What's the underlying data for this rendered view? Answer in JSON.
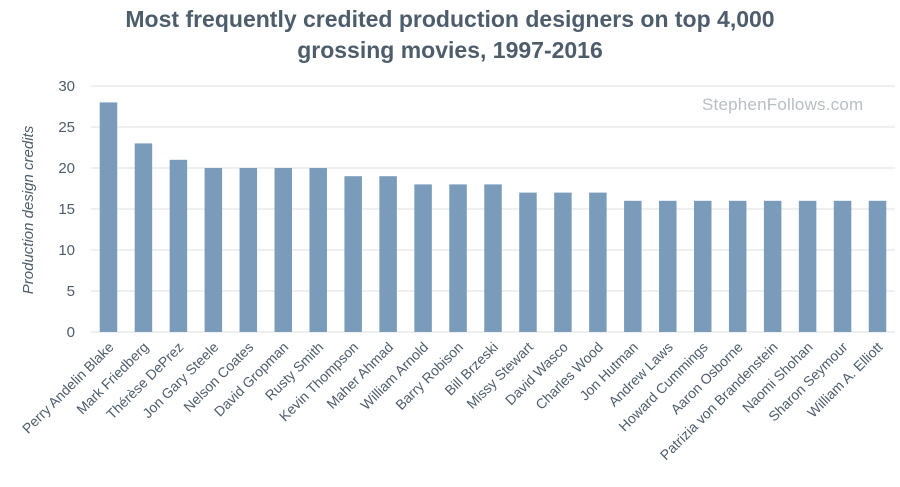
{
  "watermark": "StephenFollows.com",
  "chart_data": {
    "type": "bar",
    "title": "Most frequently credited production designers on top 4,000 grossing movies, 1997-2016",
    "title_lines": [
      "Most frequently credited production designers on top 4,000",
      "grossing movies, 1997-2016"
    ],
    "xlabel": "",
    "ylabel": "Production design credits",
    "ylim": [
      0,
      30
    ],
    "yticks": [
      0,
      5,
      10,
      15,
      20,
      25,
      30
    ],
    "grid": true,
    "legend": "none",
    "bar_color": "#7a9cba",
    "grid_color": "#dcdfe2",
    "categories": [
      "Perry Andelin Blake",
      "Mark Friedberg",
      "Thérèse DePrez",
      "Jon Gary Steele",
      "Nelson Coates",
      "David Gropman",
      "Rusty Smith",
      "Kevin Thompson",
      "Maher Ahmad",
      "William Arnold",
      "Barry Robison",
      "Bill Brzeski",
      "Missy Stewart",
      "David Wasco",
      "Charles Wood",
      "Jon Hutman",
      "Andrew Laws",
      "Howard Cummings",
      "Aaron Osborne",
      "Patrizia von Brandenstein",
      "Naomi Shohan",
      "Sharon Seymour",
      "William A. Elliott"
    ],
    "values": [
      28,
      23,
      21,
      20,
      20,
      20,
      20,
      19,
      19,
      18,
      18,
      18,
      17,
      17,
      17,
      16,
      16,
      16,
      16,
      16,
      16,
      16,
      16
    ]
  }
}
